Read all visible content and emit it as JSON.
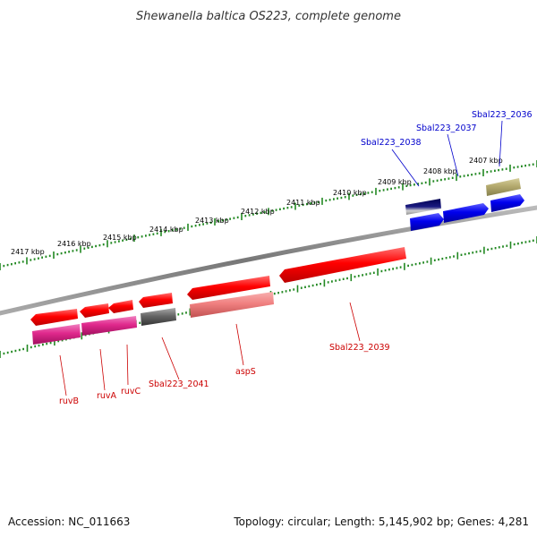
{
  "title": "Shewanella baltica OS223, complete genome",
  "accession": "Accession: NC_011663",
  "summary": "Topology: circular; Length: 5,145,902 bp; Genes: 4,281",
  "kbp_labels": [
    "2417 kbp",
    "2416 kbp",
    "2415 kbp",
    "2414 kbp",
    "2413 kbp",
    "2412 kbp",
    "2411 kbp",
    "2410 kbp",
    "2409 kbp",
    "2408 kbp",
    "2407 kbp"
  ],
  "gene_labels": [
    "ruvB",
    "ruvA",
    "ruvC",
    "Sbal223_2041",
    "aspS",
    "Sbal223_2039",
    "Sbal223_2038",
    "Sbal223_2037",
    "Sbal223_2036"
  ],
  "colors": {
    "backbone": "#888888",
    "tick": "#228822",
    "gene_red": "#ff0000",
    "gene_pink": "#e0288c",
    "gene_salmon": "#f08080",
    "gene_gray": "#666666",
    "gene_blue": "#0000ee",
    "gene_navy": "#000080",
    "gene_olive": "#b4aa6e",
    "label_red": "#cc0000",
    "label_blue": "#0000cc"
  }
}
